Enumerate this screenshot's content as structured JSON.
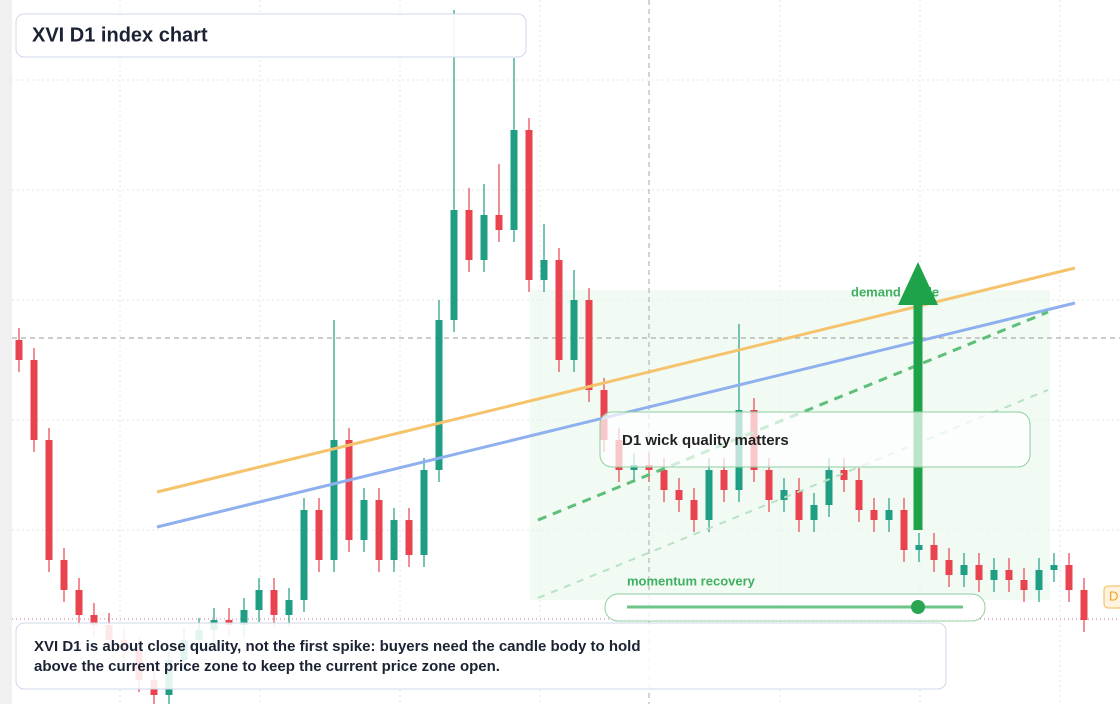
{
  "chart_data": {
    "type": "candlestick",
    "title": "XVI D1 index chart",
    "note": "D1 wick quality matters",
    "guide_label": "demand guide",
    "slider_label": "momentum recovery",
    "caption": [
      "XVI D1 is about close quality, not the first spike: buyers need the candle body to hold",
      "above the current price zone to keep the current price zone open."
    ],
    "price_tag": "D",
    "up_color": "#1f9e83",
    "down_color": "#e8434f",
    "ylim": [
      0,
      704
    ],
    "open": [
      364,
      344,
      264,
      144,
      114,
      89,
      79,
      64,
      54,
      24,
      9,
      44,
      64,
      74,
      84,
      79,
      94,
      114,
      89,
      104,
      194,
      144,
      264,
      164,
      204,
      144,
      184,
      149,
      234,
      384,
      494,
      444,
      489,
      474,
      574,
      424,
      444,
      344,
      404,
      314,
      264,
      234,
      239,
      234,
      214,
      204,
      184,
      234,
      214,
      294,
      234,
      204,
      214,
      184,
      199,
      234,
      224,
      194,
      184,
      194,
      154,
      159,
      144,
      129,
      139,
      124,
      134,
      124,
      114,
      134,
      139,
      114
    ],
    "high": [
      376,
      356,
      276,
      156,
      126,
      101,
      91,
      76,
      66,
      36,
      56,
      76,
      86,
      96,
      96,
      106,
      126,
      126,
      116,
      206,
      206,
      384,
      276,
      216,
      216,
      196,
      196,
      246,
      404,
      694,
      516,
      520,
      540,
      646,
      586,
      480,
      456,
      434,
      416,
      326,
      276,
      251,
      251,
      246,
      226,
      216,
      246,
      246,
      380,
      306,
      246,
      226,
      226,
      211,
      246,
      246,
      236,
      206,
      206,
      206,
      171,
      171,
      156,
      151,
      151,
      146,
      146,
      136,
      146,
      151,
      151,
      126
    ],
    "low": [
      332,
      252,
      132,
      102,
      77,
      67,
      52,
      42,
      12,
      0,
      0,
      32,
      52,
      62,
      67,
      67,
      82,
      77,
      77,
      92,
      132,
      132,
      152,
      152,
      132,
      132,
      137,
      137,
      222,
      372,
      432,
      432,
      462,
      462,
      412,
      412,
      332,
      332,
      302,
      252,
      222,
      222,
      222,
      202,
      192,
      172,
      172,
      202,
      202,
      222,
      192,
      192,
      172,
      172,
      187,
      212,
      182,
      172,
      172,
      142,
      142,
      132,
      117,
      117,
      112,
      112,
      112,
      102,
      102,
      122,
      102,
      72
    ],
    "close": [
      344,
      264,
      144,
      114,
      89,
      79,
      64,
      54,
      24,
      9,
      44,
      64,
      74,
      84,
      79,
      94,
      114,
      89,
      104,
      194,
      144,
      264,
      164,
      204,
      144,
      184,
      149,
      234,
      384,
      494,
      444,
      489,
      474,
      574,
      424,
      444,
      344,
      404,
      314,
      264,
      234,
      239,
      234,
      214,
      204,
      184,
      234,
      214,
      294,
      234,
      204,
      214,
      184,
      199,
      234,
      224,
      194,
      184,
      194,
      154,
      159,
      144,
      129,
      139,
      124,
      134,
      124,
      114,
      134,
      139,
      114,
      84
    ]
  }
}
